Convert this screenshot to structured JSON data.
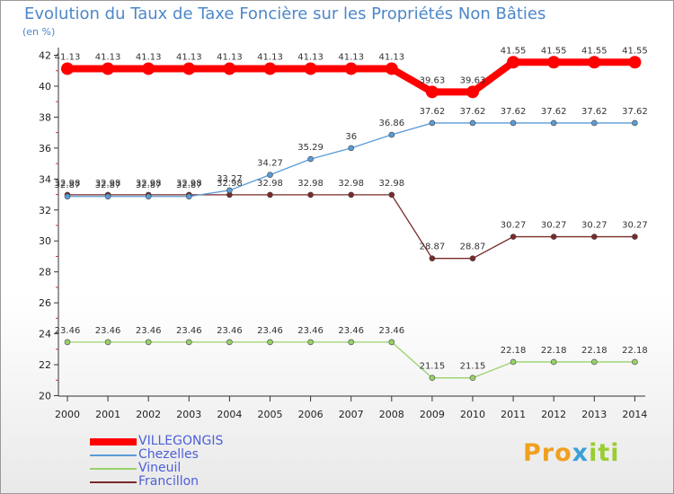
{
  "chart_data": {
    "type": "line",
    "title": "Evolution du Taux de Taxe Foncière sur les Propriétés Non Bâties",
    "ylabel": "(en %)",
    "xlabel": "",
    "ylim": [
      20,
      42
    ],
    "yticks": [
      "20",
      "22",
      "24",
      "26",
      "28",
      "30",
      "32",
      "34",
      "36",
      "38",
      "40",
      "42"
    ],
    "x": [
      "2000",
      "2001",
      "2002",
      "2003",
      "2004",
      "2005",
      "2006",
      "2007",
      "2008",
      "2009",
      "2010",
      "2011",
      "2012",
      "2013",
      "2014"
    ],
    "series": [
      {
        "name": "VILLEGONGIS",
        "color": "#ff0000",
        "values": [
          41.13,
          41.13,
          41.13,
          41.13,
          41.13,
          41.13,
          41.13,
          41.13,
          41.13,
          39.63,
          39.63,
          41.55,
          41.55,
          41.55,
          41.55
        ],
        "labels": [
          "41.13",
          "41.13",
          "41.13",
          "41.13",
          "41.13",
          "41.13",
          "41.13",
          "41.13",
          "41.13",
          "39.63",
          "39.63",
          "41.55",
          "41.55",
          "41.55",
          "41.55"
        ]
      },
      {
        "name": "Chezelles",
        "color": "#5b9bd5",
        "values": [
          32.87,
          32.87,
          32.87,
          32.87,
          33.27,
          34.27,
          35.29,
          36,
          36.86,
          37.62,
          37.62,
          37.62,
          37.62,
          37.62,
          37.62
        ],
        "labels": [
          "32.87",
          "32.87",
          "32.87",
          "32.87",
          "33.27",
          "34.27",
          "35.29",
          "36",
          "36.86",
          "37.62",
          "37.62",
          "37.62",
          "37.62",
          "37.62",
          "37.62"
        ]
      },
      {
        "name": "Vineuil",
        "color": "#99d16a",
        "values": [
          23.46,
          23.46,
          23.46,
          23.46,
          23.46,
          23.46,
          23.46,
          23.46,
          23.46,
          21.15,
          21.15,
          22.18,
          22.18,
          22.18,
          22.18
        ],
        "labels": [
          "23.46",
          "23.46",
          "23.46",
          "23.46",
          "23.46",
          "23.46",
          "23.46",
          "23.46",
          "23.46",
          "21.15",
          "21.15",
          "22.18",
          "22.18",
          "22.18",
          "22.18"
        ]
      },
      {
        "name": "Francillon",
        "color": "#7a2a2a",
        "values": [
          32.98,
          32.98,
          32.98,
          32.98,
          32.98,
          32.98,
          32.98,
          32.98,
          32.98,
          28.87,
          28.87,
          30.27,
          30.27,
          30.27,
          30.27
        ],
        "labels": [
          "32.98",
          "32.98",
          "32.98",
          "32.98",
          "32.98",
          "32.98",
          "32.98",
          "32.98",
          "32.98",
          "28.87",
          "28.87",
          "30.27",
          "30.27",
          "30.27",
          "30.27"
        ]
      }
    ],
    "legend_position": "bottom-left",
    "grid": false
  },
  "brand": {
    "parts": [
      "Pro",
      "x",
      "iti"
    ],
    "colors": [
      "#f0a020",
      "#3aa0d8",
      "#9acd32"
    ]
  }
}
